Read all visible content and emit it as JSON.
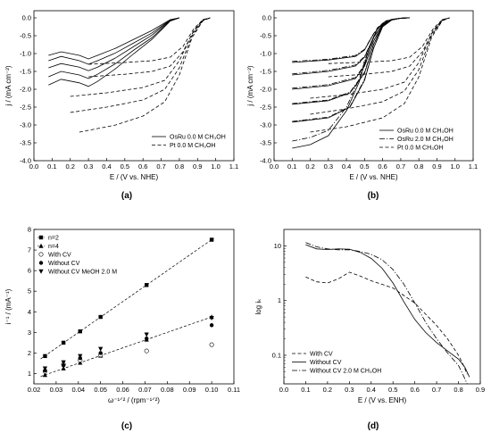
{
  "chart_data": [
    {
      "panel": "(a)",
      "type": "line",
      "xlabel": "E / (V vs. NHE)",
      "ylabel": "j / (mA cm⁻²)",
      "xlim": [
        0.0,
        1.1
      ],
      "ylim": [
        -4.0,
        0.2
      ],
      "xticks": [
        "0.0",
        "0.1",
        "0.2",
        "0.3",
        "0.4",
        "0.5",
        "0.6",
        "0.7",
        "0.8",
        "0.9",
        "1.0",
        "1.1"
      ],
      "yticks": [
        "0.0",
        "-0.5",
        "-1.0",
        "-1.5",
        "-2.0",
        "-2.5",
        "-3.0",
        "-3.5",
        "-4.0"
      ],
      "legend": [
        "OsRu 0.0 M CH₃OH",
        "Pt 0.0 M CH₃OH"
      ],
      "legend_position": "bottom-right",
      "series": [
        {
          "name": "OsRu 0.0 M CH₃OH",
          "style": "solid",
          "x": [
            0.08,
            0.15,
            0.25,
            0.3,
            0.35,
            0.45,
            0.55,
            0.65,
            0.75,
            0.8
          ],
          "y": [
            -1.05,
            -0.95,
            -1.05,
            -1.15,
            -1.05,
            -0.85,
            -0.6,
            -0.35,
            -0.05,
            0.0
          ]
        },
        {
          "style": "solid",
          "x": [
            0.08,
            0.15,
            0.25,
            0.3,
            0.35,
            0.45,
            0.55,
            0.65,
            0.75,
            0.8
          ],
          "y": [
            -1.2,
            -1.08,
            -1.2,
            -1.3,
            -1.2,
            -0.98,
            -0.7,
            -0.42,
            -0.06,
            0.0
          ]
        },
        {
          "style": "solid",
          "x": [
            0.08,
            0.15,
            0.25,
            0.3,
            0.35,
            0.45,
            0.55,
            0.65,
            0.75,
            0.8
          ],
          "y": [
            -1.4,
            -1.28,
            -1.38,
            -1.48,
            -1.38,
            -1.12,
            -0.8,
            -0.48,
            -0.07,
            0.0
          ]
        },
        {
          "style": "solid",
          "x": [
            0.08,
            0.15,
            0.25,
            0.3,
            0.35,
            0.45,
            0.55,
            0.65,
            0.75,
            0.8
          ],
          "y": [
            -1.65,
            -1.5,
            -1.6,
            -1.7,
            -1.58,
            -1.28,
            -0.9,
            -0.55,
            -0.08,
            0.0
          ]
        },
        {
          "style": "solid",
          "x": [
            0.08,
            0.15,
            0.25,
            0.3,
            0.35,
            0.45,
            0.55,
            0.65,
            0.75,
            0.8
          ],
          "y": [
            -1.88,
            -1.72,
            -1.82,
            -1.92,
            -1.78,
            -1.42,
            -1.0,
            -0.6,
            -0.09,
            0.0
          ]
        },
        {
          "name": "Pt 0.0 M CH₃OH",
          "style": "dashed",
          "x": [
            0.3,
            0.5,
            0.65,
            0.75,
            0.82,
            0.88,
            0.93,
            0.97
          ],
          "y": [
            -1.3,
            -1.25,
            -1.2,
            -1.1,
            -0.8,
            -0.3,
            -0.05,
            0.0
          ]
        },
        {
          "style": "dashed",
          "x": [
            0.3,
            0.5,
            0.65,
            0.75,
            0.82,
            0.88,
            0.93,
            0.97
          ],
          "y": [
            -1.65,
            -1.58,
            -1.5,
            -1.35,
            -0.95,
            -0.35,
            -0.05,
            0.0
          ]
        },
        {
          "style": "dashed",
          "x": [
            0.2,
            0.4,
            0.6,
            0.72,
            0.8,
            0.87,
            0.93,
            0.97
          ],
          "y": [
            -2.2,
            -2.1,
            -1.95,
            -1.75,
            -1.2,
            -0.45,
            -0.06,
            0.0
          ]
        },
        {
          "style": "dashed",
          "x": [
            0.2,
            0.4,
            0.6,
            0.72,
            0.8,
            0.87,
            0.93,
            0.97
          ],
          "y": [
            -2.65,
            -2.5,
            -2.3,
            -2.0,
            -1.4,
            -0.5,
            -0.07,
            0.0
          ]
        },
        {
          "style": "dashed",
          "x": [
            0.25,
            0.45,
            0.6,
            0.72,
            0.8,
            0.87,
            0.93,
            0.97
          ],
          "y": [
            -3.2,
            -3.0,
            -2.75,
            -2.35,
            -1.6,
            -0.55,
            -0.08,
            0.0
          ]
        }
      ]
    },
    {
      "panel": "(b)",
      "type": "line",
      "xlabel": "E / (V vs. NHE)",
      "ylabel": "j / (mA cm⁻²)",
      "xlim": [
        0.0,
        1.1
      ],
      "ylim": [
        -4.0,
        0.2
      ],
      "xticks": [
        "0.0",
        "0.1",
        "0.2",
        "0.3",
        "0.4",
        "0.5",
        "0.6",
        "0.7",
        "0.8",
        "0.9",
        "1.0",
        "1.1"
      ],
      "yticks": [
        "0.0",
        "-0.5",
        "-1.0",
        "-1.5",
        "-2.0",
        "-2.5",
        "-3.0",
        "-3.5",
        "-4.0"
      ],
      "legend": [
        "OsRu 0.0 M CH₃OH",
        "OsRu 2.0 M CH₃OH",
        "Pt 0.0 M CH₃OH"
      ],
      "legend_position": "bottom-right",
      "series": [
        {
          "name": "OsRu 0.0 M CH₃OH",
          "style": "solid",
          "x": [
            0.1,
            0.3,
            0.45,
            0.5,
            0.55,
            0.6,
            0.65,
            0.7,
            0.75
          ],
          "y": [
            -1.25,
            -1.18,
            -1.08,
            -0.9,
            -0.45,
            -0.15,
            -0.04,
            -0.01,
            0.0
          ]
        },
        {
          "style": "solid",
          "x": [
            0.1,
            0.3,
            0.45,
            0.5,
            0.55,
            0.6,
            0.65,
            0.7,
            0.75
          ],
          "y": [
            -1.6,
            -1.5,
            -1.35,
            -1.1,
            -0.55,
            -0.18,
            -0.05,
            -0.01,
            0.0
          ]
        },
        {
          "style": "solid",
          "x": [
            0.1,
            0.3,
            0.45,
            0.5,
            0.55,
            0.6,
            0.65,
            0.7,
            0.75
          ],
          "y": [
            -2.0,
            -1.9,
            -1.7,
            -1.35,
            -0.65,
            -0.2,
            -0.05,
            -0.01,
            0.0
          ]
        },
        {
          "style": "solid",
          "x": [
            0.1,
            0.3,
            0.42,
            0.5,
            0.55,
            0.6,
            0.65,
            0.7,
            0.75
          ],
          "y": [
            -2.42,
            -2.32,
            -2.1,
            -1.55,
            -0.75,
            -0.22,
            -0.06,
            -0.01,
            0.0
          ]
        },
        {
          "style": "solid",
          "x": [
            0.1,
            0.3,
            0.42,
            0.5,
            0.55,
            0.6,
            0.65,
            0.7,
            0.75
          ],
          "y": [
            -2.92,
            -2.8,
            -2.5,
            -1.75,
            -0.85,
            -0.25,
            -0.06,
            -0.01,
            0.0
          ]
        },
        {
          "style": "solid",
          "x": [
            0.1,
            0.2,
            0.3,
            0.4,
            0.47,
            0.52,
            0.57,
            0.62,
            0.7,
            0.75
          ],
          "y": [
            -3.65,
            -3.55,
            -3.3,
            -2.6,
            -1.8,
            -0.95,
            -0.3,
            -0.08,
            -0.01,
            0.0
          ]
        },
        {
          "name": "OsRu 2.0 M CH₃OH",
          "style": "dashdot",
          "x": [
            0.1,
            0.3,
            0.45,
            0.5,
            0.55,
            0.6,
            0.65,
            0.7,
            0.75
          ],
          "y": [
            -1.22,
            -1.16,
            -1.05,
            -0.88,
            -0.44,
            -0.15,
            -0.04,
            -0.01,
            0.0
          ]
        },
        {
          "style": "dashdot",
          "x": [
            0.1,
            0.3,
            0.45,
            0.5,
            0.55,
            0.6,
            0.65,
            0.7,
            0.75
          ],
          "y": [
            -1.57,
            -1.47,
            -1.32,
            -1.08,
            -0.54,
            -0.17,
            -0.05,
            -0.01,
            0.0
          ]
        },
        {
          "style": "dashdot",
          "x": [
            0.1,
            0.3,
            0.45,
            0.5,
            0.55,
            0.6,
            0.65,
            0.7,
            0.75
          ],
          "y": [
            -1.97,
            -1.87,
            -1.67,
            -1.32,
            -0.64,
            -0.2,
            -0.05,
            -0.01,
            0.0
          ]
        },
        {
          "style": "dashdot",
          "x": [
            0.1,
            0.3,
            0.42,
            0.5,
            0.55,
            0.6,
            0.65,
            0.7,
            0.75
          ],
          "y": [
            -2.4,
            -2.3,
            -2.08,
            -1.52,
            -0.74,
            -0.22,
            -0.06,
            -0.01,
            0.0
          ]
        },
        {
          "style": "dashdot",
          "x": [
            0.1,
            0.3,
            0.42,
            0.5,
            0.55,
            0.6,
            0.65,
            0.7,
            0.75
          ],
          "y": [
            -2.9,
            -2.78,
            -2.48,
            -1.72,
            -0.84,
            -0.24,
            -0.06,
            -0.01,
            0.0
          ]
        },
        {
          "style": "dashdot",
          "x": [
            0.1,
            0.2,
            0.3,
            0.4,
            0.47,
            0.52,
            0.57,
            0.62,
            0.7,
            0.75
          ],
          "y": [
            -3.45,
            -3.35,
            -3.15,
            -2.5,
            -1.72,
            -0.9,
            -0.28,
            -0.08,
            -0.01,
            0.0
          ]
        },
        {
          "name": "Pt 0.0 M CH₃OH",
          "style": "dashed",
          "x": [
            0.3,
            0.5,
            0.65,
            0.75,
            0.82,
            0.88,
            0.93,
            0.97
          ],
          "y": [
            -1.28,
            -1.24,
            -1.2,
            -1.1,
            -0.8,
            -0.3,
            -0.05,
            0.0
          ]
        },
        {
          "style": "dashed",
          "x": [
            0.3,
            0.5,
            0.65,
            0.75,
            0.82,
            0.88,
            0.93,
            0.97
          ],
          "y": [
            -1.65,
            -1.58,
            -1.5,
            -1.35,
            -0.95,
            -0.35,
            -0.05,
            0.0
          ]
        },
        {
          "style": "dashed",
          "x": [
            0.2,
            0.4,
            0.6,
            0.72,
            0.8,
            0.87,
            0.93,
            0.97
          ],
          "y": [
            -2.25,
            -2.15,
            -2.0,
            -1.8,
            -1.25,
            -0.45,
            -0.06,
            0.0
          ]
        },
        {
          "style": "dashed",
          "x": [
            0.2,
            0.4,
            0.6,
            0.72,
            0.8,
            0.87,
            0.93,
            0.97
          ],
          "y": [
            -2.7,
            -2.55,
            -2.35,
            -2.05,
            -1.45,
            -0.5,
            -0.07,
            0.0
          ]
        },
        {
          "style": "dashed",
          "x": [
            0.2,
            0.4,
            0.6,
            0.72,
            0.8,
            0.87,
            0.93,
            0.97
          ],
          "y": [
            -3.2,
            -3.05,
            -2.8,
            -2.4,
            -1.65,
            -0.55,
            -0.08,
            0.0
          ]
        }
      ]
    },
    {
      "panel": "(c)",
      "type": "scatter",
      "xlabel": "ω⁻¹ᐟ² / (rpm⁻¹ᐟ²)",
      "ylabel": "i⁻¹ / (mA⁻¹)",
      "xlim": [
        0.02,
        0.11
      ],
      "ylim": [
        0.5,
        8.0
      ],
      "xticks": [
        "0.02",
        "0.03",
        "0.04",
        "0.05",
        "0.06",
        "0.07",
        "0.08",
        "0.09",
        "0.10",
        "0.11"
      ],
      "yticks": [
        "1",
        "2",
        "3",
        "4",
        "5",
        "6",
        "7",
        "8"
      ],
      "legend": [
        "n=2",
        "n=4",
        "With CV",
        "Without CV",
        "Without CV MeOH 2.0 M"
      ],
      "legend_position": "top-left",
      "series": [
        {
          "name": "n=2",
          "marker": "square",
          "line": "dashed",
          "x": [
            0.025,
            0.0333,
            0.0408,
            0.05,
            0.0707,
            0.1
          ],
          "y": [
            1.85,
            2.5,
            3.05,
            3.75,
            5.3,
            7.5
          ]
        },
        {
          "name": "n=4",
          "marker": "triangle-up",
          "line": "dashed",
          "x": [
            0.025,
            0.0333,
            0.0408,
            0.05,
            0.0707,
            0.1
          ],
          "y": [
            0.93,
            1.25,
            1.53,
            1.87,
            2.65,
            3.75
          ]
        },
        {
          "name": "With CV",
          "marker": "circle-open",
          "x": [
            0.025,
            0.0333,
            0.0408,
            0.05,
            0.0707,
            0.1
          ],
          "y": [
            1.1,
            1.45,
            1.65,
            1.9,
            2.1,
            2.4
          ]
        },
        {
          "name": "Without CV",
          "marker": "circle-filled",
          "x": [
            0.025,
            0.0333,
            0.0408,
            0.05,
            0.0707,
            0.1
          ],
          "y": [
            1.15,
            1.4,
            1.75,
            2.0,
            2.7,
            3.35
          ]
        },
        {
          "name": "Without CV MeOH 2.0 M",
          "marker": "triangle-down",
          "x": [
            0.025,
            0.0333,
            0.0408,
            0.05,
            0.0707,
            0.1
          ],
          "y": [
            1.25,
            1.55,
            1.85,
            2.2,
            2.9,
            3.7
          ]
        }
      ]
    },
    {
      "panel": "(d)",
      "type": "line",
      "xlabel": "E / (V vs. ENH)",
      "ylabel": "log iₖ",
      "xscale": "linear",
      "yscale": "log",
      "xlim": [
        0.0,
        0.9
      ],
      "ylim": [
        0.03,
        20
      ],
      "xticks": [
        "0.0",
        "0.1",
        "0.2",
        "0.3",
        "0.4",
        "0.5",
        "0.6",
        "0.7",
        "0.8",
        "0.9"
      ],
      "yticks": [
        "10",
        "1",
        "0.1"
      ],
      "legend": [
        "With CV",
        "Without CV",
        "Without CV 2.0 M CH₃OH"
      ],
      "legend_position": "bottom-left",
      "series": [
        {
          "name": "With CV",
          "style": "dashed",
          "x": [
            0.1,
            0.15,
            0.2,
            0.25,
            0.3,
            0.35,
            0.4,
            0.5,
            0.6,
            0.7,
            0.75,
            0.8,
            0.82,
            0.84
          ],
          "y": [
            2.7,
            2.2,
            2.1,
            2.5,
            3.3,
            2.8,
            2.3,
            1.7,
            0.9,
            0.35,
            0.2,
            0.1,
            0.07,
            0.045
          ]
        },
        {
          "name": "Without CV",
          "style": "solid",
          "x": [
            0.1,
            0.15,
            0.2,
            0.25,
            0.3,
            0.35,
            0.4,
            0.45,
            0.5,
            0.55,
            0.6,
            0.65,
            0.7,
            0.75,
            0.8,
            0.83,
            0.85
          ],
          "y": [
            10.5,
            8.8,
            8.6,
            8.8,
            8.7,
            7.6,
            5.9,
            3.9,
            2.1,
            0.95,
            0.45,
            0.26,
            0.17,
            0.12,
            0.085,
            0.06,
            0.04
          ]
        },
        {
          "name": "Without CV 2.0 M CH₃OH",
          "style": "dashdot",
          "x": [
            0.1,
            0.15,
            0.2,
            0.25,
            0.3,
            0.35,
            0.4,
            0.45,
            0.5,
            0.55,
            0.6,
            0.65,
            0.7,
            0.75,
            0.8,
            0.82,
            0.84
          ],
          "y": [
            11.5,
            9.6,
            8.8,
            8.5,
            8.5,
            7.9,
            7.0,
            5.6,
            3.7,
            2.0,
            0.9,
            0.4,
            0.2,
            0.11,
            0.065,
            0.045,
            0.03
          ]
        }
      ]
    }
  ]
}
